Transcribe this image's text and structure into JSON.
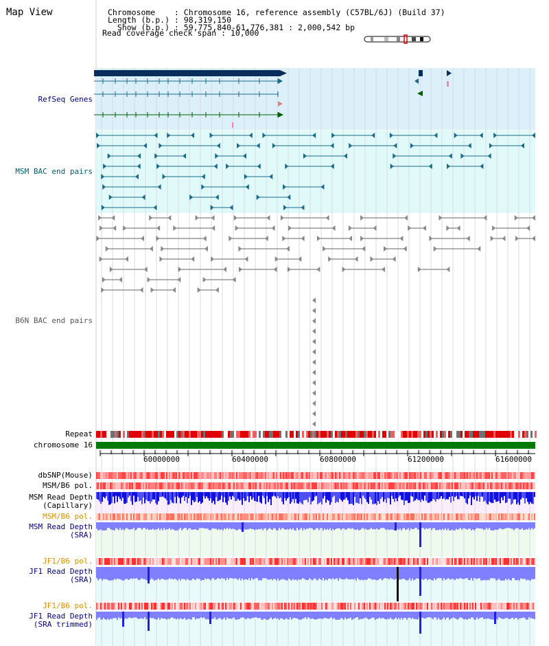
{
  "header": {
    "title": "Map View",
    "info_lines": [
      "Chromosome    : Chromosome 16, reference assembly (C57BL/6J) (Build 37)",
      "Length (b.p.) : 98,319,150",
      "  Show (b.p.) : 59,775,840-61,776,381 : 2,000,542 bp",
      "Read coverage check span : 10,000"
    ]
  },
  "tracks": {
    "refseq_genes": "RefSeq Genes",
    "msm_bac": "MSM BAC end pairs",
    "b6n_bac": "B6N BAC end pairs",
    "repeat": "Repeat",
    "chromosome": "chromosome 16",
    "dbsnp": "dbSNP(Mouse)",
    "msm_b6_pol_1": "MSM/B6 pol.",
    "msm_read_depth_cap": "MSM Read Depth\n(Capillary)",
    "msm_b6_pol_2": "MSM/B6 pol.",
    "msm_read_depth_sra": "MSM Read Depth\n(SRA)",
    "jf1_b6_pol_1": "JF1/B6 pol.",
    "jf1_read_depth_sra": "JF1 Read Depth\n(SRA)",
    "jf1_b6_pol_2": "JF1/B6 pol.",
    "jf1_read_depth_trim": "JF1 Read Depth\n(SRA trimmed)"
  },
  "ruler": {
    "ticks": [
      "60000000",
      "60400000",
      "60800000",
      "61200000",
      "61600000"
    ]
  },
  "colors": {
    "refseq_bg": "#dcf0fa",
    "msm_bac_bg": "#e0fafa",
    "gene_dark": "#0a2e5c",
    "bac_teal": "#1a6a8a",
    "b6n_gray": "#666666",
    "chromosome_green": "#007a00",
    "label_blue": "#000080",
    "label_orange": "#e09000",
    "depth_blue": "#1010e0",
    "depth_light": "#8080ff"
  }
}
